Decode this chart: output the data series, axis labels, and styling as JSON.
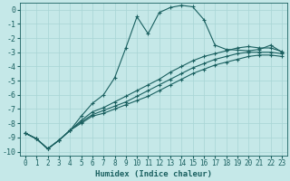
{
  "xlabel": "Humidex (Indice chaleur)",
  "xlim": [
    -0.5,
    23.5
  ],
  "ylim": [
    -10.3,
    0.5
  ],
  "xticks": [
    0,
    1,
    2,
    3,
    4,
    5,
    6,
    7,
    8,
    9,
    10,
    11,
    12,
    13,
    14,
    15,
    16,
    17,
    18,
    19,
    20,
    21,
    22,
    23
  ],
  "yticks": [
    0,
    -1,
    -2,
    -3,
    -4,
    -5,
    -6,
    -7,
    -8,
    -9,
    -10
  ],
  "bg_color": "#c5e8e8",
  "grid_color": "#a8d5d5",
  "line_color": "#1a6060",
  "lines": [
    {
      "x": [
        0,
        1,
        2,
        3,
        4,
        5,
        6,
        7,
        8,
        9,
        10,
        11,
        12,
        13,
        14,
        15,
        16,
        17,
        18,
        19,
        20,
        21,
        22,
        23
      ],
      "y": [
        -8.7,
        -9.1,
        -9.8,
        -9.2,
        -8.5,
        -7.5,
        -6.6,
        -6.0,
        -4.8,
        -2.7,
        -0.5,
        -1.7,
        -0.2,
        0.15,
        0.3,
        0.2,
        -0.7,
        -2.5,
        -2.8,
        -2.85,
        -2.9,
        -2.8,
        -2.5,
        -3.0
      ]
    },
    {
      "x": [
        0,
        1,
        2,
        3,
        4,
        5,
        6,
        7,
        8,
        9,
        10,
        11,
        12,
        13,
        14,
        15,
        16,
        17,
        18,
        19,
        20,
        21,
        22,
        23
      ],
      "y": [
        -8.7,
        -9.1,
        -9.8,
        -9.2,
        -8.5,
        -7.8,
        -7.2,
        -6.9,
        -6.5,
        -6.1,
        -5.7,
        -5.3,
        -4.9,
        -4.4,
        -4.0,
        -3.6,
        -3.3,
        -3.1,
        -2.9,
        -2.7,
        -2.6,
        -2.7,
        -2.7,
        -2.95
      ]
    },
    {
      "x": [
        0,
        1,
        2,
        3,
        4,
        5,
        6,
        7,
        8,
        9,
        10,
        11,
        12,
        13,
        14,
        15,
        16,
        17,
        18,
        19,
        20,
        21,
        22,
        23
      ],
      "y": [
        -8.7,
        -9.1,
        -9.8,
        -9.2,
        -8.5,
        -7.9,
        -7.4,
        -7.1,
        -6.8,
        -6.5,
        -6.1,
        -5.7,
        -5.3,
        -4.9,
        -4.5,
        -4.1,
        -3.8,
        -3.5,
        -3.3,
        -3.1,
        -3.0,
        -3.0,
        -3.0,
        -3.1
      ]
    },
    {
      "x": [
        0,
        1,
        2,
        3,
        4,
        5,
        6,
        7,
        8,
        9,
        10,
        11,
        12,
        13,
        14,
        15,
        16,
        17,
        18,
        19,
        20,
        21,
        22,
        23
      ],
      "y": [
        -8.7,
        -9.1,
        -9.8,
        -9.2,
        -8.5,
        -8.0,
        -7.5,
        -7.3,
        -7.0,
        -6.7,
        -6.4,
        -6.1,
        -5.7,
        -5.3,
        -4.9,
        -4.5,
        -4.2,
        -3.9,
        -3.7,
        -3.5,
        -3.3,
        -3.2,
        -3.2,
        -3.3
      ]
    }
  ]
}
